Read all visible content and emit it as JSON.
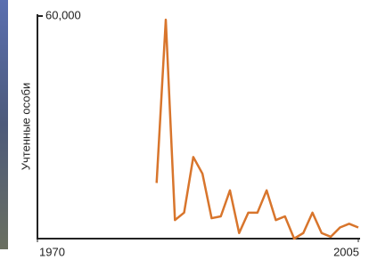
{
  "chart_data": {
    "type": "line",
    "ylabel": "Учтенные особи",
    "x": [
      1983,
      1984,
      1985,
      1986,
      1987,
      1988,
      1989,
      1990,
      1991,
      1992,
      1993,
      1994,
      1995,
      1996,
      1997,
      1998,
      1999,
      2000,
      2001,
      2002,
      2003,
      2004,
      2005
    ],
    "series": [
      {
        "color": "#d8752c",
        "values": [
          15000,
          59000,
          5000,
          7000,
          22000,
          17500,
          5500,
          6000,
          13000,
          1500,
          7000,
          7000,
          13000,
          5000,
          6000,
          0,
          1500,
          7000,
          1500,
          500,
          3000,
          4000,
          3000
        ]
      }
    ],
    "xlim": [
      1970,
      2005
    ],
    "xticks": [
      1970,
      2005
    ],
    "ylim": [
      0,
      60000
    ],
    "yticks": [
      {
        "value": 60000,
        "label": "60,000"
      }
    ]
  }
}
